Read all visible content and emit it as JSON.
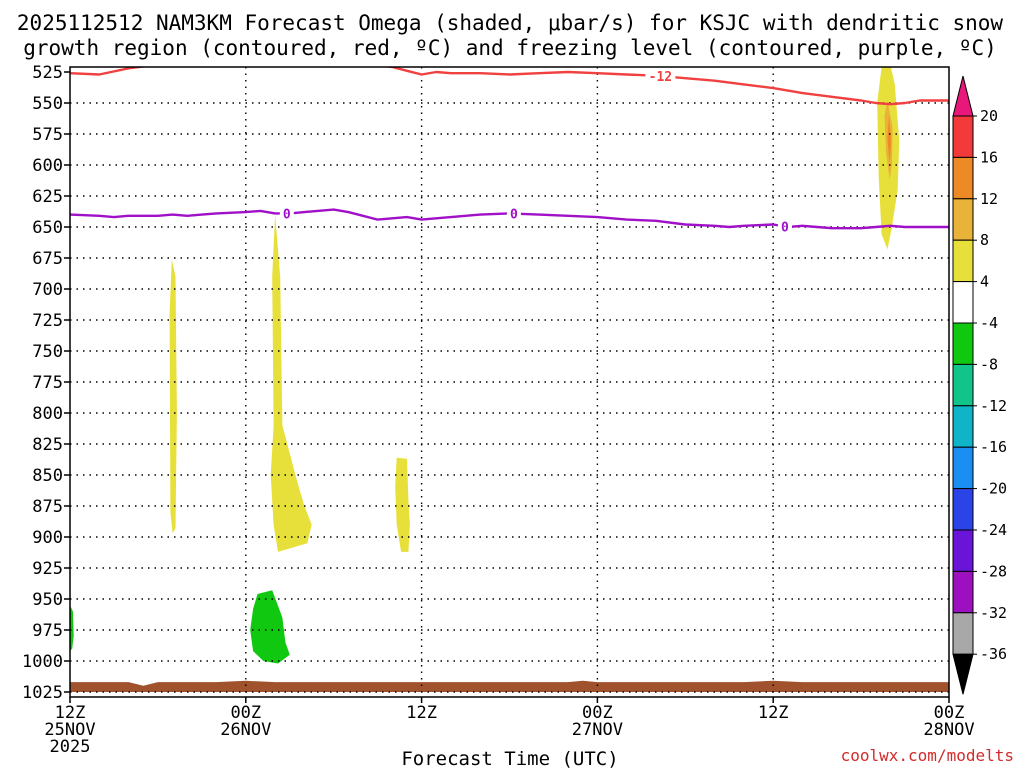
{
  "chart_data": {
    "type": "heatmap",
    "title_lines": [
      "2025112512 NAM3KM Forecast Omega (shaded, μbar/s) for KSJC with dendritic snow",
      "growth region (contoured, red, ºC) and freezing level (contoured, purple, ºC)"
    ],
    "xlabel": "Forecast Time (UTC)",
    "credit": "coolwx.com/modelts",
    "x_range_hours": [
      0,
      60
    ],
    "y_levels": [
      525,
      550,
      575,
      600,
      625,
      650,
      675,
      700,
      725,
      750,
      775,
      800,
      825,
      850,
      875,
      900,
      925,
      950,
      975,
      1000,
      1025
    ],
    "y_labels": [
      "525",
      "550",
      "575",
      "600",
      "625",
      "650",
      "675",
      "700",
      "725",
      "750",
      "775",
      "800",
      "825",
      "850",
      "875",
      "900",
      "925",
      "950",
      "975",
      "1000",
      "1025"
    ],
    "x_ticks": [
      {
        "hour": 0,
        "lines": [
          "12Z",
          "25NOV",
          "2025"
        ]
      },
      {
        "hour": 12,
        "lines": [
          "00Z",
          "26NOV"
        ]
      },
      {
        "hour": 24,
        "lines": [
          "12Z"
        ]
      },
      {
        "hour": 36,
        "lines": [
          "00Z",
          "27NOV"
        ]
      },
      {
        "hour": 48,
        "lines": [
          "12Z"
        ]
      },
      {
        "hour": 60,
        "lines": [
          "00Z",
          "28NOV"
        ]
      }
    ],
    "colorbar": {
      "labels": [
        "20",
        "16",
        "12",
        "8",
        "4",
        "-4",
        "-8",
        "-12",
        "-16",
        "-20",
        "-24",
        "-28",
        "-32",
        "-36"
      ],
      "colors": [
        "#f23a3a",
        "#ee8a26",
        "#e9b238",
        "#e8e03a",
        "#ffffff",
        "#10c810",
        "#10c48a",
        "#10b4c8",
        "#1a8ef2",
        "#2a44e8",
        "#6a14d8",
        "#9c10c0",
        "#a8a8a8"
      ],
      "over_color": "#e8187a",
      "under_color": "#000000"
    },
    "contours": [
      {
        "name": "dendritic-snow-growth -12C",
        "color": "#f04040",
        "label": "-12",
        "label_hour": 40.3,
        "points": [
          [
            0,
            526
          ],
          [
            2,
            527
          ],
          [
            4,
            522
          ],
          [
            6,
            519
          ],
          [
            8,
            517
          ],
          [
            10,
            518
          ],
          [
            12,
            519
          ],
          [
            14,
            518
          ],
          [
            16,
            517
          ],
          [
            18,
            517
          ],
          [
            20,
            518
          ],
          [
            22,
            521
          ],
          [
            23,
            524
          ],
          [
            24,
            527
          ],
          [
            25,
            525
          ],
          [
            26,
            526
          ],
          [
            28,
            526
          ],
          [
            30,
            527
          ],
          [
            32,
            526
          ],
          [
            34,
            525
          ],
          [
            36,
            526
          ],
          [
            38,
            527
          ],
          [
            40,
            528
          ],
          [
            42,
            530
          ],
          [
            44,
            532
          ],
          [
            46,
            535
          ],
          [
            48,
            538
          ],
          [
            50,
            542
          ],
          [
            52,
            545
          ],
          [
            54,
            548
          ],
          [
            55,
            550
          ],
          [
            56,
            551
          ],
          [
            57,
            550
          ],
          [
            58,
            548
          ],
          [
            59,
            548
          ],
          [
            60,
            548
          ]
        ]
      },
      {
        "name": "freezing-level 0C",
        "color": "#a010c8",
        "label": "0",
        "label_hours": [
          14.8,
          30.3,
          48.8
        ],
        "points": [
          [
            0,
            640
          ],
          [
            2,
            641
          ],
          [
            3,
            642
          ],
          [
            4,
            641
          ],
          [
            6,
            641
          ],
          [
            7,
            640
          ],
          [
            8,
            641
          ],
          [
            9,
            640
          ],
          [
            10,
            639
          ],
          [
            12,
            638
          ],
          [
            13,
            637
          ],
          [
            14,
            639
          ],
          [
            15,
            639
          ],
          [
            16,
            638
          ],
          [
            18,
            636
          ],
          [
            19,
            638
          ],
          [
            20,
            641
          ],
          [
            21,
            644
          ],
          [
            22,
            643
          ],
          [
            23,
            642
          ],
          [
            24,
            644
          ],
          [
            26,
            642
          ],
          [
            28,
            640
          ],
          [
            30,
            639
          ],
          [
            32,
            640
          ],
          [
            34,
            641
          ],
          [
            36,
            642
          ],
          [
            38,
            644
          ],
          [
            40,
            645
          ],
          [
            42,
            648
          ],
          [
            44,
            649
          ],
          [
            45,
            650
          ],
          [
            46,
            649
          ],
          [
            48,
            648
          ],
          [
            49,
            650
          ],
          [
            50,
            649
          ],
          [
            51,
            650
          ],
          [
            52,
            651
          ],
          [
            54,
            651
          ],
          [
            55,
            650
          ],
          [
            56,
            649
          ],
          [
            57,
            650
          ],
          [
            58,
            650
          ],
          [
            60,
            650
          ]
        ]
      }
    ],
    "shaded_regions": [
      {
        "name": "yellow-4-8-a",
        "value_band": "4 to 8",
        "color": "#e8e03a",
        "points": [
          [
            6.95,
            676
          ],
          [
            7.2,
            690
          ],
          [
            7.3,
            800
          ],
          [
            7.2,
            893
          ],
          [
            7.0,
            897
          ],
          [
            6.85,
            880
          ],
          [
            6.8,
            720
          ]
        ]
      },
      {
        "name": "yellow-4-8-b",
        "value_band": "4 to 8",
        "color": "#e8e03a",
        "points": [
          [
            14.0,
            640
          ],
          [
            14.35,
            690
          ],
          [
            14.5,
            810
          ],
          [
            15.5,
            855
          ],
          [
            16.0,
            875
          ],
          [
            16.5,
            890
          ],
          [
            16.2,
            905
          ],
          [
            14.2,
            912
          ],
          [
            13.9,
            890
          ],
          [
            13.7,
            850
          ],
          [
            13.9,
            810
          ],
          [
            13.8,
            690
          ]
        ]
      },
      {
        "name": "yellow-4-8-c",
        "value_band": "4 to 8",
        "color": "#e8e03a",
        "points": [
          [
            22.3,
            836
          ],
          [
            23.0,
            837
          ],
          [
            23.1,
            870
          ],
          [
            23.2,
            890
          ],
          [
            23.1,
            912
          ],
          [
            22.6,
            912
          ],
          [
            22.3,
            890
          ],
          [
            22.2,
            860
          ]
        ]
      },
      {
        "name": "yellow-4-8-d",
        "value_band": "4 to 8",
        "color": "#e8e03a",
        "points": [
          [
            56.0,
            519
          ],
          [
            56.3,
            535
          ],
          [
            56.6,
            580
          ],
          [
            56.5,
            620
          ],
          [
            56.1,
            650
          ],
          [
            55.8,
            668
          ],
          [
            55.4,
            656
          ],
          [
            55.2,
            610
          ],
          [
            55.1,
            550
          ],
          [
            55.4,
            521
          ]
        ]
      },
      {
        "name": "orange-8-12",
        "value_band": "8 to 12",
        "color": "#e9b238",
        "points": [
          [
            55.8,
            548
          ],
          [
            56.15,
            570
          ],
          [
            56.1,
            600
          ],
          [
            55.95,
            612
          ],
          [
            55.7,
            590
          ],
          [
            55.6,
            560
          ]
        ]
      },
      {
        "name": "orange-12-16",
        "value_band": "12 to 16",
        "color": "#ee8a26",
        "points": [
          [
            55.9,
            560
          ],
          [
            56.05,
            580
          ],
          [
            55.95,
            598
          ],
          [
            55.8,
            580
          ]
        ]
      },
      {
        "name": "green-neg4-neg8-a",
        "value_band": "-4 to -8",
        "color": "#10c810",
        "points": [
          [
            0.0,
            955
          ],
          [
            0.2,
            960
          ],
          [
            0.25,
            980
          ],
          [
            0.15,
            990
          ],
          [
            0.0,
            992
          ]
        ]
      },
      {
        "name": "green-neg4-neg8-b",
        "value_band": "-4 to -8",
        "color": "#10c810",
        "points": [
          [
            12.8,
            946
          ],
          [
            13.8,
            943
          ],
          [
            14.5,
            965
          ],
          [
            14.7,
            985
          ],
          [
            15.0,
            995
          ],
          [
            14.2,
            1002
          ],
          [
            13.2,
            1000
          ],
          [
            12.5,
            992
          ],
          [
            12.3,
            975
          ],
          [
            12.5,
            958
          ]
        ]
      }
    ],
    "terrain": {
      "name": "surface-terrain",
      "color": "#a0522d",
      "top_points": [
        [
          0,
          1017
        ],
        [
          4,
          1017
        ],
        [
          5,
          1020
        ],
        [
          6,
          1017
        ],
        [
          10,
          1017
        ],
        [
          12,
          1016
        ],
        [
          14,
          1017
        ],
        [
          20,
          1017
        ],
        [
          30,
          1017
        ],
        [
          34,
          1017
        ],
        [
          35,
          1016
        ],
        [
          36,
          1017
        ],
        [
          46,
          1017
        ],
        [
          48,
          1016
        ],
        [
          50,
          1017
        ],
        [
          60,
          1017
        ]
      ],
      "base_level": 1025
    }
  }
}
